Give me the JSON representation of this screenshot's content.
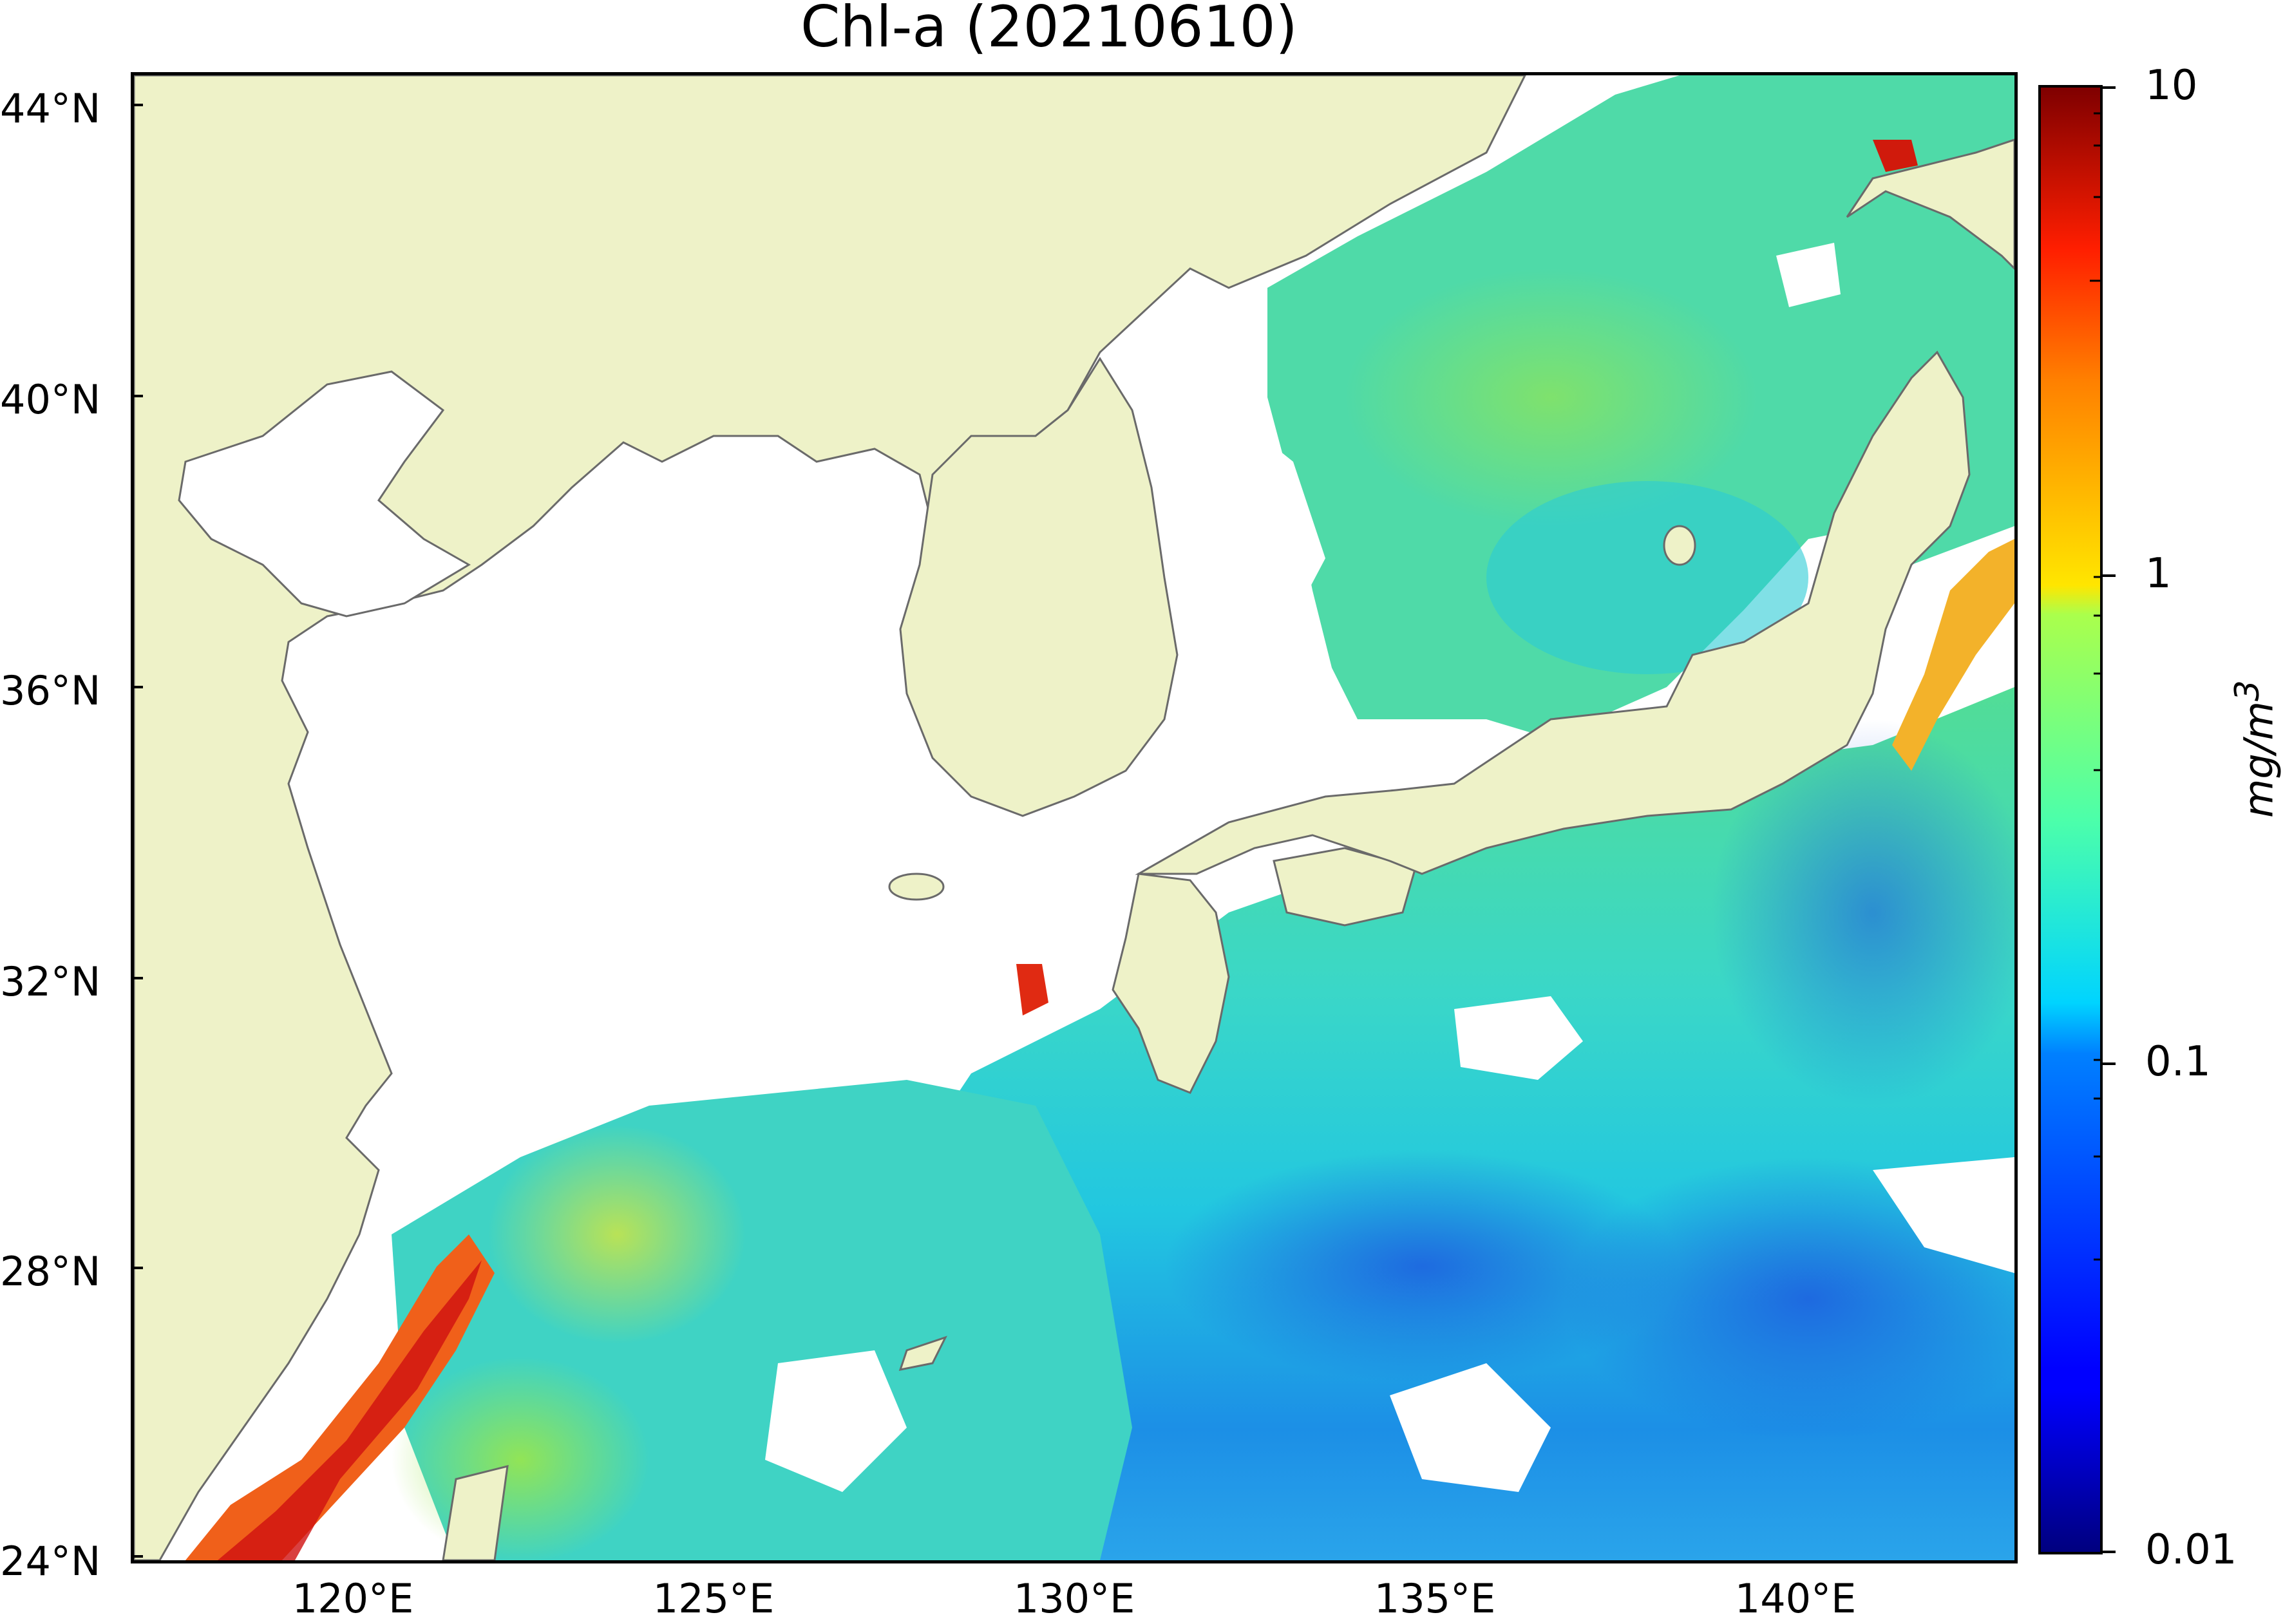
{
  "title": "Chl-a (20210610)",
  "lat_labels": [
    "44°N",
    "40°N",
    "36°N",
    "32°N",
    "28°N",
    "24°N"
  ],
  "lon_labels": [
    "120°E",
    "125°E",
    "130°E",
    "135°E",
    "140°E"
  ],
  "colorbar": {
    "ticks": [
      "10",
      "1",
      "0.1",
      "0.01"
    ],
    "unit": "mg/m3",
    "scale": "log",
    "range": [
      0.01,
      10
    ],
    "colormap": "jet"
  },
  "colors": {
    "land": "#eef2c8",
    "coast": "#6a6a6a",
    "no_data": "#ffffff"
  },
  "map": {
    "lon_range": [
      116.8,
      143.0
    ],
    "lat_range": [
      23.8,
      44.4
    ],
    "variable": "Chl-a"
  }
}
